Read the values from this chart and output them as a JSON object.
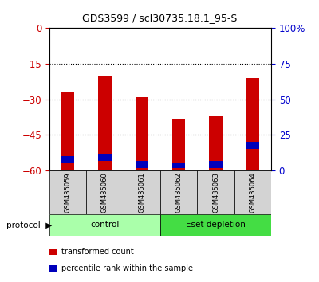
{
  "title": "GDS3599 / scl30735.18.1_95-S",
  "samples": [
    "GSM435059",
    "GSM435060",
    "GSM435061",
    "GSM435062",
    "GSM435063",
    "GSM435064"
  ],
  "red_bar_tops": [
    -27,
    -20,
    -29,
    -38,
    -37,
    -21
  ],
  "blue_bar_tops": [
    -54,
    -53,
    -56,
    -57,
    -56,
    -48
  ],
  "red_bar_bottoms": [
    -60,
    -60,
    -60,
    -60,
    -60,
    -60
  ],
  "blue_bar_bottoms": [
    -57,
    -56,
    -59,
    -59,
    -59,
    -51
  ],
  "ylim_left": [
    -60,
    0
  ],
  "yticks_left": [
    0,
    -15,
    -30,
    -45,
    -60
  ],
  "yticks_right": [
    0,
    25,
    50,
    75,
    100
  ],
  "bar_color_red": "#CC0000",
  "bar_color_blue": "#0000BB",
  "left_axis_color": "#CC0000",
  "right_axis_color": "#0000CC",
  "sample_bg_color": "#D3D3D3",
  "control_color": "#AAFFAA",
  "esetdepl_color": "#44DD44",
  "bar_width": 0.35
}
